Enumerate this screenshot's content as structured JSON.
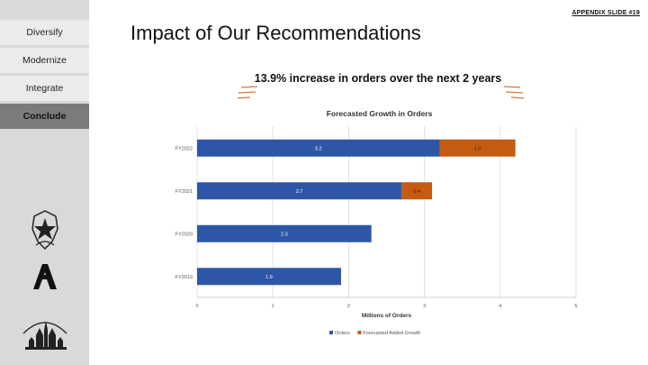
{
  "sidebar": {
    "items": [
      {
        "label": "Diversify",
        "active": false
      },
      {
        "label": "Modernize",
        "active": false
      },
      {
        "label": "Integrate",
        "active": false
      },
      {
        "label": "Conclude",
        "active": true
      }
    ],
    "logos": [
      "star-shield-logo",
      "angular-a-logo",
      "castle-logo"
    ]
  },
  "header": {
    "appendix_label": "APPENDIX SLIDE #19",
    "title": "Impact of Our Recommendations",
    "headline": "13.9% increase in orders over the next 2 years"
  },
  "colors": {
    "orders": "#2e56a6",
    "forecasted": "#c55a11",
    "accent_dash": "#d17a3c",
    "sidebar_bg": "#d9d9d9",
    "nav_active": "#7b7b7b"
  },
  "chart_data": {
    "type": "bar",
    "orientation": "horizontal",
    "stacked": true,
    "title": "Forecasted Growth in Orders",
    "xlabel": "Millions of Orders",
    "ylabel": "",
    "xlim": [
      0,
      5
    ],
    "xticks": [
      "0",
      "1",
      "2",
      "3",
      "4",
      "5"
    ],
    "grid": true,
    "legend_position": "bottom",
    "categories": [
      "FY2022",
      "FY2021",
      "FY2020",
      "FY2019"
    ],
    "series": [
      {
        "name": "Orders",
        "values": [
          3.2,
          2.7,
          2.3,
          1.9
        ],
        "labels": [
          "3.2",
          "2.7",
          "2.3",
          "1.9"
        ]
      },
      {
        "name": "Forecasted Added Growth",
        "values": [
          1.0,
          0.4,
          null,
          null
        ],
        "labels": [
          "1.0",
          "0.4",
          "",
          ""
        ]
      }
    ]
  }
}
